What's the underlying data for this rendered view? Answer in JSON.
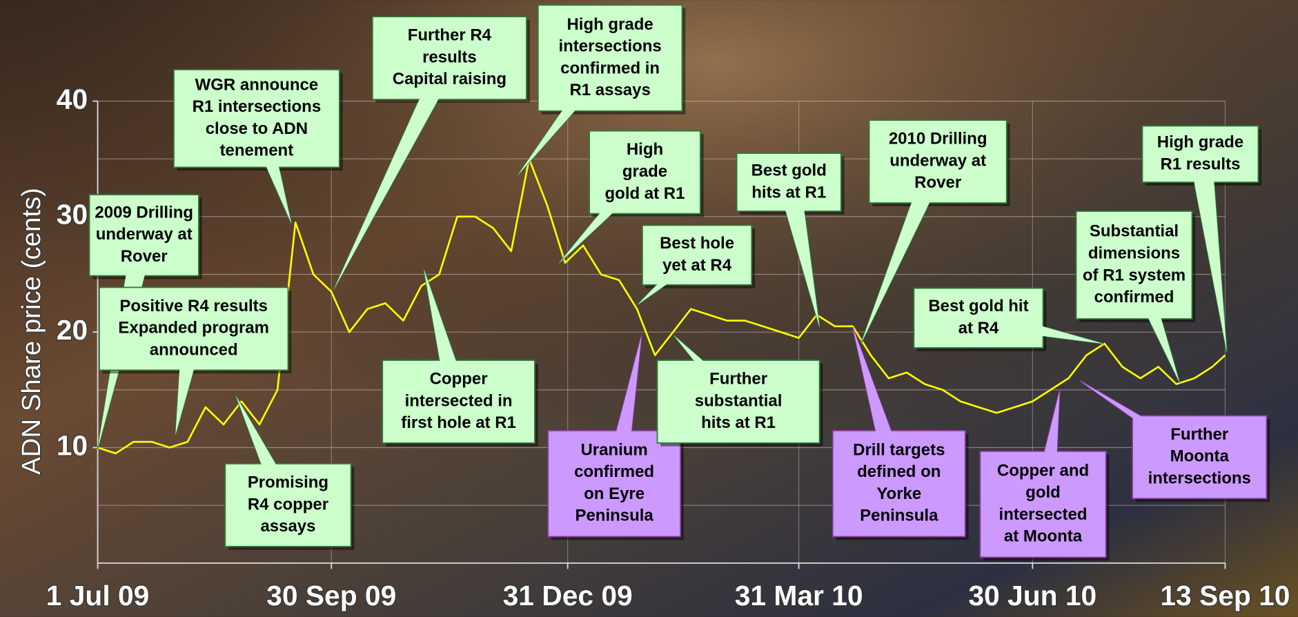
{
  "chart_data": {
    "type": "line",
    "y_label": "ADN Share price (cents)",
    "color": "#ffff00",
    "grid": true,
    "ylim": [
      0,
      40
    ],
    "yticks": [
      10,
      20,
      30,
      40
    ],
    "ygrid": [
      5,
      10,
      15,
      20,
      25,
      30,
      35,
      40
    ],
    "xlim": [
      "2009-07-01",
      "2010-09-13"
    ],
    "xticks": [
      {
        "value": "2009-07-01",
        "label": "1 Jul 09"
      },
      {
        "value": "2009-09-30",
        "label": "30 Sep 09"
      },
      {
        "value": "2009-12-31",
        "label": "31 Dec 09"
      },
      {
        "value": "2010-03-31",
        "label": "31 Mar 10"
      },
      {
        "value": "2010-06-30",
        "label": "30 Jun 10"
      },
      {
        "value": "2010-09-13",
        "label": "13 Sep 10"
      }
    ],
    "x": [
      "2009-07-01",
      "2009-07-08",
      "2009-07-15",
      "2009-07-22",
      "2009-07-29",
      "2009-08-05",
      "2009-08-12",
      "2009-08-19",
      "2009-08-26",
      "2009-09-02",
      "2009-09-09",
      "2009-09-16",
      "2009-09-23",
      "2009-09-30",
      "2009-10-07",
      "2009-10-14",
      "2009-10-21",
      "2009-10-28",
      "2009-11-04",
      "2009-11-11",
      "2009-11-18",
      "2009-11-25",
      "2009-12-02",
      "2009-12-09",
      "2009-12-16",
      "2009-12-23",
      "2009-12-30",
      "2010-01-06",
      "2010-01-13",
      "2010-01-20",
      "2010-01-27",
      "2010-02-03",
      "2010-02-10",
      "2010-02-17",
      "2010-02-24",
      "2010-03-03",
      "2010-03-10",
      "2010-03-17",
      "2010-03-24",
      "2010-03-31",
      "2010-04-07",
      "2010-04-14",
      "2010-04-21",
      "2010-04-28",
      "2010-05-05",
      "2010-05-12",
      "2010-05-19",
      "2010-05-26",
      "2010-06-02",
      "2010-06-09",
      "2010-06-16",
      "2010-06-23",
      "2010-06-30",
      "2010-07-07",
      "2010-07-14",
      "2010-07-21",
      "2010-07-28",
      "2010-08-04",
      "2010-08-11",
      "2010-08-18",
      "2010-08-25",
      "2010-09-01",
      "2010-09-08",
      "2010-09-13"
    ],
    "values": [
      10,
      9.5,
      10.5,
      10.5,
      10,
      10.5,
      13.5,
      12,
      14,
      12,
      15,
      29.5,
      25,
      23.5,
      20,
      22,
      22.5,
      21,
      24,
      25,
      30,
      30,
      29,
      27,
      35,
      31,
      26,
      27.5,
      25,
      24.5,
      22,
      18,
      20,
      22,
      21.5,
      21,
      21,
      20.5,
      20,
      19.5,
      21.5,
      20.5,
      20.5,
      18,
      16,
      16.5,
      15.5,
      15,
      14,
      13.5,
      13,
      13.5,
      14,
      15,
      16,
      18,
      19,
      17,
      16,
      17,
      15.5,
      16,
      17,
      18
    ],
    "annotations": [
      {
        "lines": [
          "2009 Drilling",
          "underway at",
          "Rover"
        ],
        "color": "#ccffcc"
      },
      {
        "lines": [
          "Positive R4 results",
          "Expanded program",
          "announced"
        ],
        "color": "#ccffcc"
      },
      {
        "lines": [
          "Promising",
          "R4 copper",
          "assays"
        ],
        "color": "#ccffcc"
      },
      {
        "lines": [
          "WGR announce",
          "R1 intersections",
          "close to ADN",
          "tenement"
        ],
        "color": "#ccffcc"
      },
      {
        "lines": [
          "Further R4",
          "results",
          "Capital raising"
        ],
        "color": "#ccffcc"
      },
      {
        "lines": [
          "Copper",
          "intersected in",
          "first hole at R1"
        ],
        "color": "#ccffcc"
      },
      {
        "lines": [
          "High grade",
          "intersections",
          "confirmed in",
          "R1 assays"
        ],
        "color": "#ccffcc"
      },
      {
        "lines": [
          "High",
          "grade",
          "gold at R1"
        ],
        "color": "#ccffcc"
      },
      {
        "lines": [
          "Best hole",
          "yet at R4"
        ],
        "color": "#ccffcc"
      },
      {
        "lines": [
          "Uranium",
          "confirmed",
          "on Eyre",
          "Peninsula"
        ],
        "color": "#cc99ff"
      },
      {
        "lines": [
          "Further",
          "substantial",
          "hits at R1"
        ],
        "color": "#ccffcc"
      },
      {
        "lines": [
          "Best gold",
          "hits at R1"
        ],
        "color": "#ccffcc"
      },
      {
        "lines": [
          "2010 Drilling",
          "underway at",
          "Rover"
        ],
        "color": "#ccffcc"
      },
      {
        "lines": [
          "Drill targets",
          "defined on",
          "Yorke",
          "Peninsula"
        ],
        "color": "#cc99ff"
      },
      {
        "lines": [
          "Best gold hit",
          "at R4"
        ],
        "color": "#ccffcc"
      },
      {
        "lines": [
          "Copper and",
          "gold",
          "intersected",
          "at  Moonta"
        ],
        "color": "#cc99ff"
      },
      {
        "lines": [
          "Substantial",
          "dimensions",
          "of R1 system",
          "confirmed"
        ],
        "color": "#ccffcc"
      },
      {
        "lines": [
          "Further",
          "Moonta",
          "intersections"
        ],
        "color": "#cc99ff"
      },
      {
        "lines": [
          "High grade",
          "R1 results"
        ],
        "color": "#ccffcc"
      }
    ]
  }
}
